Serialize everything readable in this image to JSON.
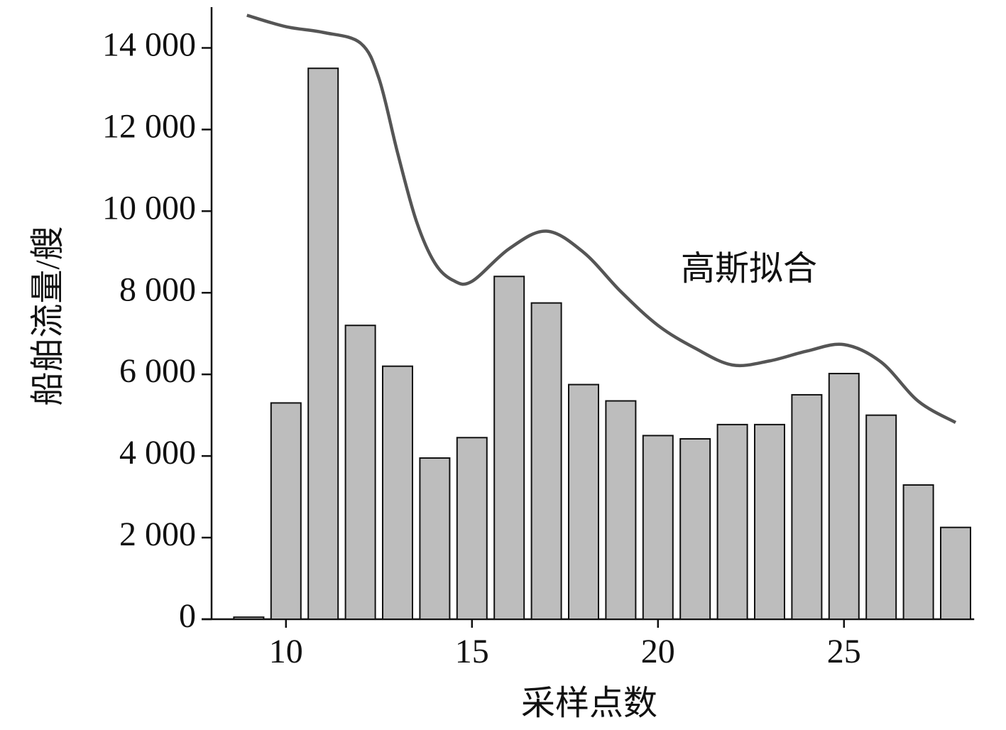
{
  "chart_data": {
    "type": "bar",
    "x_label": "采样点数",
    "y_label": "船舶流量/艘",
    "xlim": [
      8,
      28.5
    ],
    "ylim": [
      0,
      15000
    ],
    "xticks": [
      10,
      15,
      20,
      25
    ],
    "yticks": [
      0,
      {
        "value": 2000,
        "label": "2 000"
      },
      {
        "value": 4000,
        "label": "4 000"
      },
      {
        "value": 6000,
        "label": "6 000"
      },
      {
        "value": 8000,
        "label": "8 000"
      },
      {
        "value": 10000,
        "label": "10 000"
      },
      {
        "value": 12000,
        "label": "12 000"
      },
      {
        "value": 14000,
        "label": "14 000"
      }
    ],
    "series": [
      {
        "type": "bar",
        "color": "#bdbdbd",
        "x": [
          9,
          10,
          11,
          12,
          13,
          14,
          15,
          16,
          17,
          18,
          19,
          20,
          21,
          22,
          23,
          24,
          25,
          26,
          27,
          28
        ],
        "values": [
          50,
          5300,
          13500,
          7200,
          6200,
          3950,
          4450,
          8400,
          7750,
          5750,
          5350,
          4500,
          4420,
          4770,
          4770,
          5500,
          6020,
          5000,
          3290,
          2250
        ]
      },
      {
        "type": "line",
        "name": "高斯拟合",
        "color": "#555555",
        "x": [
          8.95,
          10,
          11,
          12,
          12.5,
          13,
          13.5,
          14,
          14.5,
          15,
          16,
          17,
          18,
          19,
          20,
          21,
          22,
          23,
          24,
          25,
          26,
          27,
          28
        ],
        "values": [
          14800,
          14520,
          14380,
          14120,
          13250,
          11430,
          9770,
          8730,
          8300,
          8280,
          9080,
          9510,
          8990,
          8030,
          7200,
          6640,
          6230,
          6330,
          6570,
          6730,
          6300,
          5340,
          4820
        ]
      }
    ]
  }
}
